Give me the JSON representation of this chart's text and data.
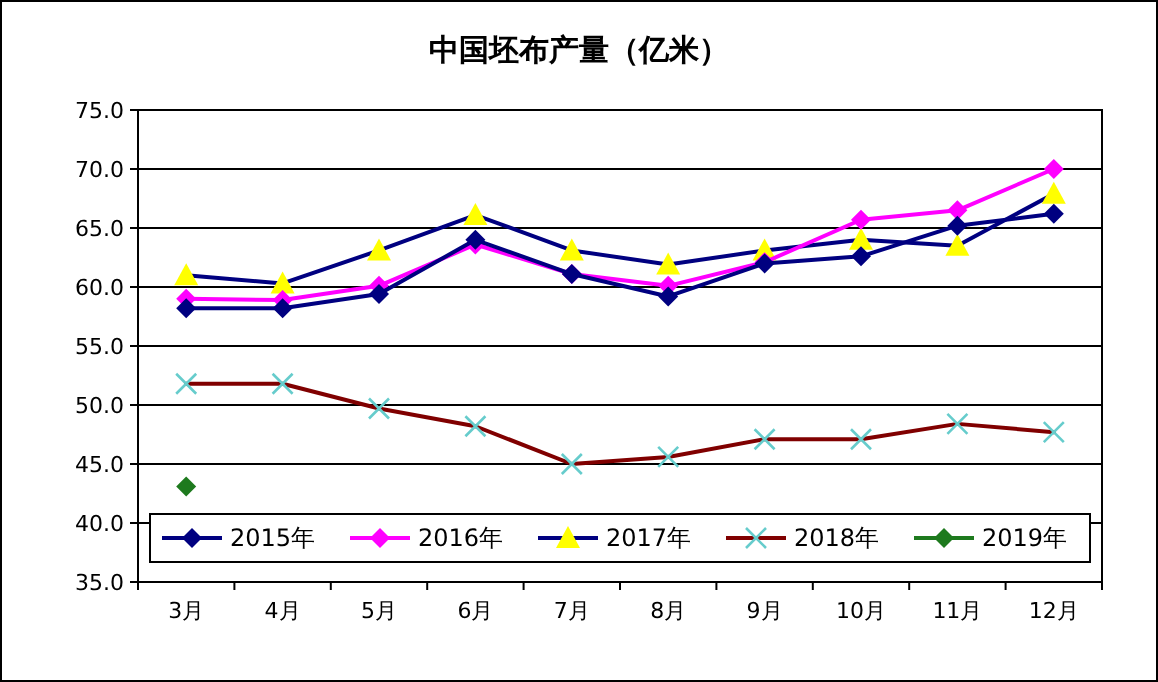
{
  "chart_data": {
    "type": "line",
    "title": "中国坯布产量（亿米）",
    "categories": [
      "3月",
      "4月",
      "5月",
      "6月",
      "7月",
      "8月",
      "9月",
      "10月",
      "11月",
      "12月"
    ],
    "series": [
      {
        "name": "2015年",
        "color": "#000080",
        "marker": "diamond",
        "values": [
          58.2,
          58.2,
          59.4,
          64.0,
          61.1,
          59.2,
          62.0,
          62.6,
          65.2,
          66.2
        ]
      },
      {
        "name": "2016年",
        "color": "#ff00ff",
        "marker": "diamond",
        "values": [
          59.0,
          58.9,
          60.1,
          63.6,
          61.1,
          60.1,
          62.1,
          65.7,
          66.5,
          70.0
        ]
      },
      {
        "name": "2017年",
        "color": "#000080",
        "colors": [
          "#ffff00",
          "#ffff00",
          "#ffff00",
          "#ffff00",
          "#ffff00",
          "#ffff00",
          "#ffff00",
          "#ffff00",
          "#ffff00",
          "#ffff00"
        ],
        "marker": "triangle",
        "values": [
          61.0,
          60.3,
          63.1,
          66.1,
          63.1,
          61.9,
          63.1,
          64.0,
          63.5,
          67.9
        ]
      },
      {
        "name": "2018年",
        "color": "#800000",
        "colors": [
          "#66cccc",
          "#66cccc",
          "#66cccc",
          "#66cccc",
          "#66cccc",
          "#66cccc",
          "#66cccc",
          "#66cccc",
          "#66cccc",
          "#66cccc"
        ],
        "marker": "cross",
        "values": [
          51.8,
          51.8,
          49.7,
          48.2,
          45.0,
          45.6,
          47.1,
          47.1,
          48.4,
          47.7
        ]
      },
      {
        "name": "2019年",
        "color": "#1e7a1e",
        "marker": "diamond",
        "values": [
          43.1,
          null,
          null,
          null,
          null,
          null,
          null,
          null,
          null,
          null
        ]
      }
    ],
    "ylim": [
      35,
      75
    ],
    "yticks": [
      {
        "value": 35,
        "label": "35.0"
      },
      {
        "value": 40,
        "label": "40.0"
      },
      {
        "value": 45,
        "label": "45.0"
      },
      {
        "value": 50,
        "label": "50.0"
      },
      {
        "value": 55,
        "label": "55.0"
      },
      {
        "value": 60,
        "label": "60.0"
      },
      {
        "value": 65,
        "label": "65.0"
      },
      {
        "value": 70,
        "label": "70.0"
      },
      {
        "value": 75,
        "label": "75.0"
      }
    ],
    "grid": "y",
    "legend": "bottom"
  }
}
